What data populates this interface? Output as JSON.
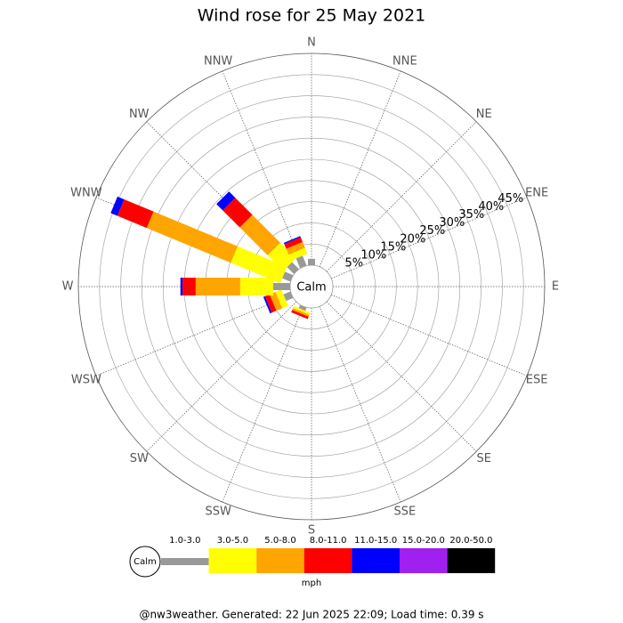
{
  "chart_data": {
    "type": "wind_rose",
    "title": "Wind rose for 25 May 2021",
    "categories": [
      "N",
      "NNE",
      "NE",
      "ENE",
      "E",
      "ESE",
      "SE",
      "SSE",
      "S",
      "SSW",
      "SW",
      "WSW",
      "W",
      "WNW",
      "NW",
      "NNW"
    ],
    "center_label": "Calm",
    "rlim": [
      0,
      50
    ],
    "rticks": [
      {
        "value": 5,
        "label": "5%"
      },
      {
        "value": 10,
        "label": "10%"
      },
      {
        "value": 15,
        "label": "15%"
      },
      {
        "value": 20,
        "label": "20%"
      },
      {
        "value": 25,
        "label": "25%"
      },
      {
        "value": 30,
        "label": "30%"
      },
      {
        "value": 35,
        "label": "35%"
      },
      {
        "value": 40,
        "label": "40%"
      },
      {
        "value": 45,
        "label": "45%"
      }
    ],
    "series": [
      {
        "name": "1.0-3.0",
        "color": "#999999",
        "values": [
          1.5,
          0,
          0,
          0,
          0,
          0,
          0,
          0,
          0,
          0.8,
          0,
          1.8,
          4,
          2.1,
          2.3,
          2.5
        ]
      },
      {
        "name": "3.0-5.0",
        "color": "#ffff00",
        "values": [
          0,
          0,
          0,
          0,
          0,
          0,
          0,
          0,
          0,
          0.5,
          0,
          1.5,
          7.8,
          12.6,
          5.2,
          1.5
        ]
      },
      {
        "name": "5.0-8.0",
        "color": "#ffa500",
        "values": [
          0,
          0,
          0,
          0,
          0,
          0,
          0,
          0,
          0,
          0.5,
          0,
          1.5,
          10.5,
          21.5,
          9.3,
          1.5
        ]
      },
      {
        "name": "8.0-11.0",
        "color": "#ff0000",
        "values": [
          0,
          0,
          0,
          0,
          0,
          0,
          0,
          0,
          0,
          0.6,
          0,
          1.2,
          3.1,
          7.5,
          5.7,
          1.2
        ]
      },
      {
        "name": "11.0-15.0",
        "color": "#0000ff",
        "values": [
          0,
          0,
          0,
          0,
          0,
          0,
          0,
          0,
          0,
          0,
          0,
          0.4,
          0.5,
          1.7,
          2.1,
          0.3
        ]
      },
      {
        "name": "15.0-20.0",
        "color": "#a020f0",
        "values": [
          0,
          0,
          0,
          0,
          0,
          0,
          0,
          0,
          0,
          0,
          0,
          0,
          0,
          0,
          0,
          0
        ]
      },
      {
        "name": "20.0-50.0",
        "color": "#000000",
        "values": [
          0,
          0,
          0,
          0,
          0,
          0,
          0,
          0,
          0,
          0,
          0,
          0,
          0,
          0,
          0,
          0
        ]
      }
    ],
    "legend_calm": "Calm",
    "legend_unit": "mph",
    "footer": "@nw3weather. Generated: 22 Jun 2025 22:09; Load time: 0.39 s"
  }
}
